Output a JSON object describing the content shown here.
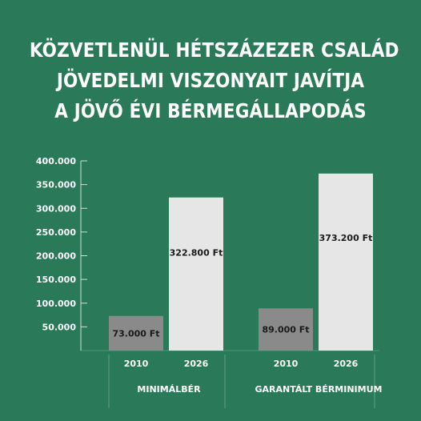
{
  "title_lines": [
    "KÖZVETLENÜL HÉTSZÁZEZER CSALÁD",
    "JÖVEDELMI VISZONYAIT JAVÍTJA",
    "A JÖVŐ ÉVI BÉRMEGÁLLAPODÁS"
  ],
  "colors": {
    "background": "#2a7a5a",
    "bar_2010": "#8a8a8a",
    "bar_2026": "#e6e6e6",
    "axis": "#cfe0d8"
  },
  "chart_data": {
    "type": "bar",
    "title": "KÖZVETLENÜL HÉTSZÁZEZER CSALÁD JÖVEDELMI VISZONYAIT JAVÍTJA A JÖVŐ ÉVI BÉRMEGÁLLAPODÁS",
    "ylim": [
      0,
      400000
    ],
    "yticks": [
      50000,
      100000,
      150000,
      200000,
      250000,
      300000,
      350000,
      400000
    ],
    "ytick_labels": [
      "50.000",
      "100.000",
      "150.000",
      "200.000",
      "250.000",
      "300.000",
      "350.000",
      "400.000"
    ],
    "grid": false,
    "groups": [
      {
        "name": "MINIMÁLBÉR",
        "bars": [
          {
            "category": "2010",
            "value": 73000,
            "label": "73.000 Ft"
          },
          {
            "category": "2026",
            "value": 322800,
            "label": "322.800 Ft"
          }
        ]
      },
      {
        "name": "GARANTÁLT BÉRMINIMUM",
        "bars": [
          {
            "category": "2010",
            "value": 89000,
            "label": "89.000 Ft"
          },
          {
            "category": "2026",
            "value": 373200,
            "label": "373.200 Ft"
          }
        ]
      }
    ]
  }
}
